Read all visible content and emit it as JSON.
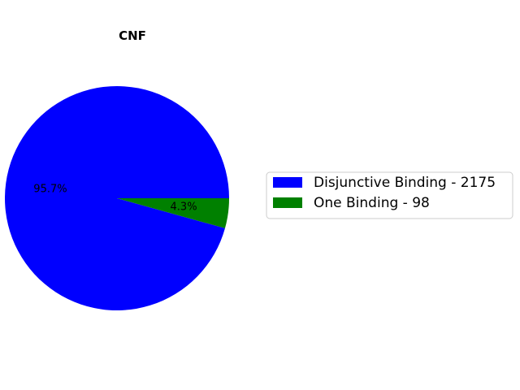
{
  "chart_data": {
    "type": "pie",
    "title": "CNF",
    "slices": [
      {
        "label": "Disjunctive Binding - 2175",
        "value": 2175,
        "percent_label": "95.7%",
        "color": "#0000ff"
      },
      {
        "label": "One Binding - 98",
        "value": 98,
        "percent_label": "4.3%",
        "color": "#008000"
      }
    ],
    "start_angle_deg": 0,
    "direction": "counterclockwise",
    "legend_position": "right"
  }
}
